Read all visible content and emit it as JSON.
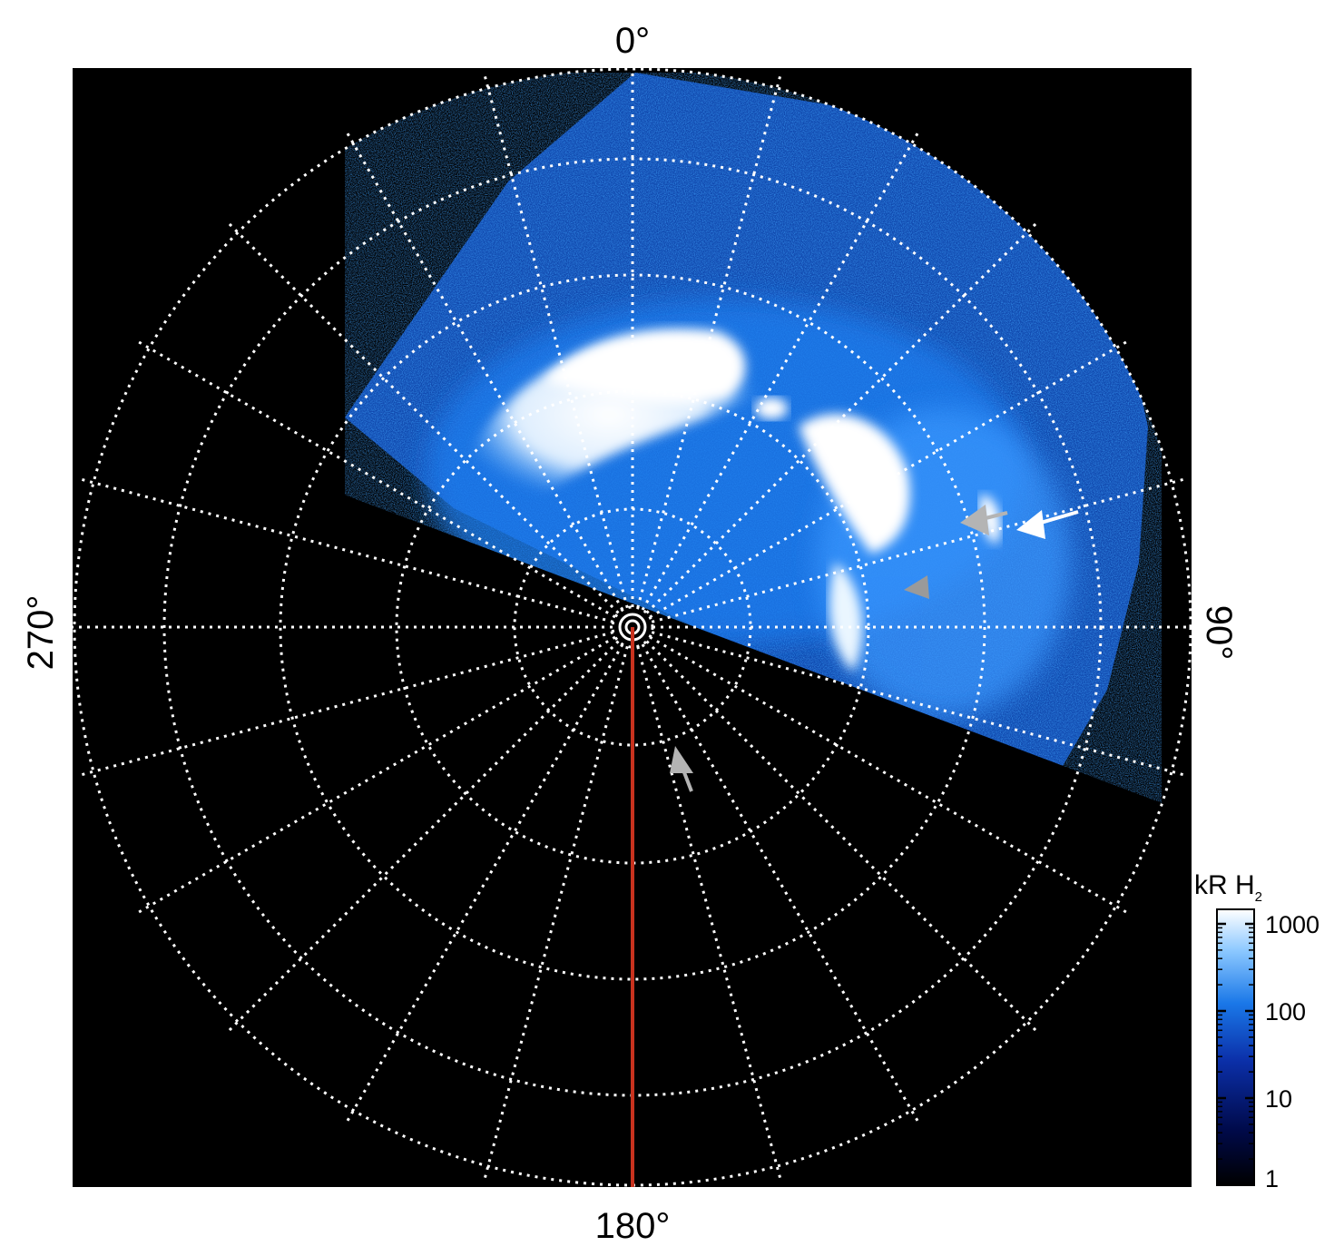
{
  "polar_labels": {
    "top": "0°",
    "bottom": "180°",
    "left": "270°",
    "right": "90°"
  },
  "colorbar": {
    "unit_main": "kR H",
    "unit_sub": "2",
    "ticks": [
      "1000",
      "100",
      "10",
      "1"
    ],
    "scale": "log",
    "range": [
      1,
      1000
    ],
    "colors": [
      "#000000",
      "#000a4a",
      "#0b2fa8",
      "#1a78e8",
      "#8cc8ff",
      "#ffffff"
    ]
  },
  "image": {
    "background": "#000000",
    "grid_color": "#ffffff",
    "meridian_line_color": "#c8321e",
    "annotations": [
      "white-arrow",
      "gray-arrow",
      "gray-arrow",
      "gray-arrow"
    ]
  }
}
